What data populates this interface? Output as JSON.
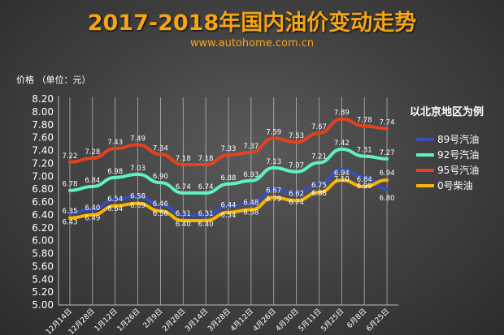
{
  "header": {
    "title": "2017-2018年国内油价变动走势",
    "subtitle": "www.autohome.com.cn",
    "unit_label": "价格 （单位：元）"
  },
  "legend": {
    "title": "以北京地区为例"
  },
  "chart_data": {
    "type": "line",
    "categories": [
      "12月14日",
      "12月28日",
      "1月12日",
      "1月26日",
      "2月9日",
      "2月28日",
      "3月14日",
      "3月28日",
      "4月12日",
      "4月26日",
      "4月30日",
      "5月11日",
      "5月25日",
      "6月8日",
      "6月25日"
    ],
    "ylim": [
      5.0,
      8.2
    ],
    "yticks": [
      "5.00",
      "5.20",
      "5.40",
      "5.60",
      "5.80",
      "6.00",
      "6.20",
      "6.40",
      "6.60",
      "6.80",
      "7.00",
      "7.20",
      "7.40",
      "7.60",
      "7.80",
      "8.00",
      "8.20"
    ],
    "grid": "vertical",
    "legend_position": "right",
    "series": [
      {
        "name": "89号汽油",
        "color": "#3a4fb5",
        "values": [
          6.43,
          6.49,
          6.64,
          6.69,
          6.56,
          6.4,
          6.4,
          6.54,
          6.58,
          6.79,
          6.74,
          6.88,
          7.1,
          6.99,
          6.8
        ]
      },
      {
        "name": "92号汽油",
        "color": "#5ef0c6",
        "values": [
          6.78,
          6.84,
          6.98,
          7.03,
          6.9,
          6.74,
          6.74,
          6.88,
          6.93,
          7.13,
          7.07,
          7.21,
          7.42,
          7.31,
          7.27
        ]
      },
      {
        "name": "95号汽油",
        "color": "#e3421d",
        "values": [
          7.22,
          7.28,
          7.43,
          7.49,
          7.34,
          7.18,
          7.18,
          7.33,
          7.37,
          7.59,
          7.53,
          7.67,
          7.89,
          7.78,
          7.74
        ]
      },
      {
        "name": "0号柴油",
        "color": "#f7b400",
        "values": [
          6.35,
          6.4,
          6.54,
          6.58,
          6.46,
          6.31,
          6.31,
          6.44,
          6.48,
          6.67,
          6.62,
          6.75,
          6.94,
          6.84,
          6.94
        ]
      }
    ]
  }
}
